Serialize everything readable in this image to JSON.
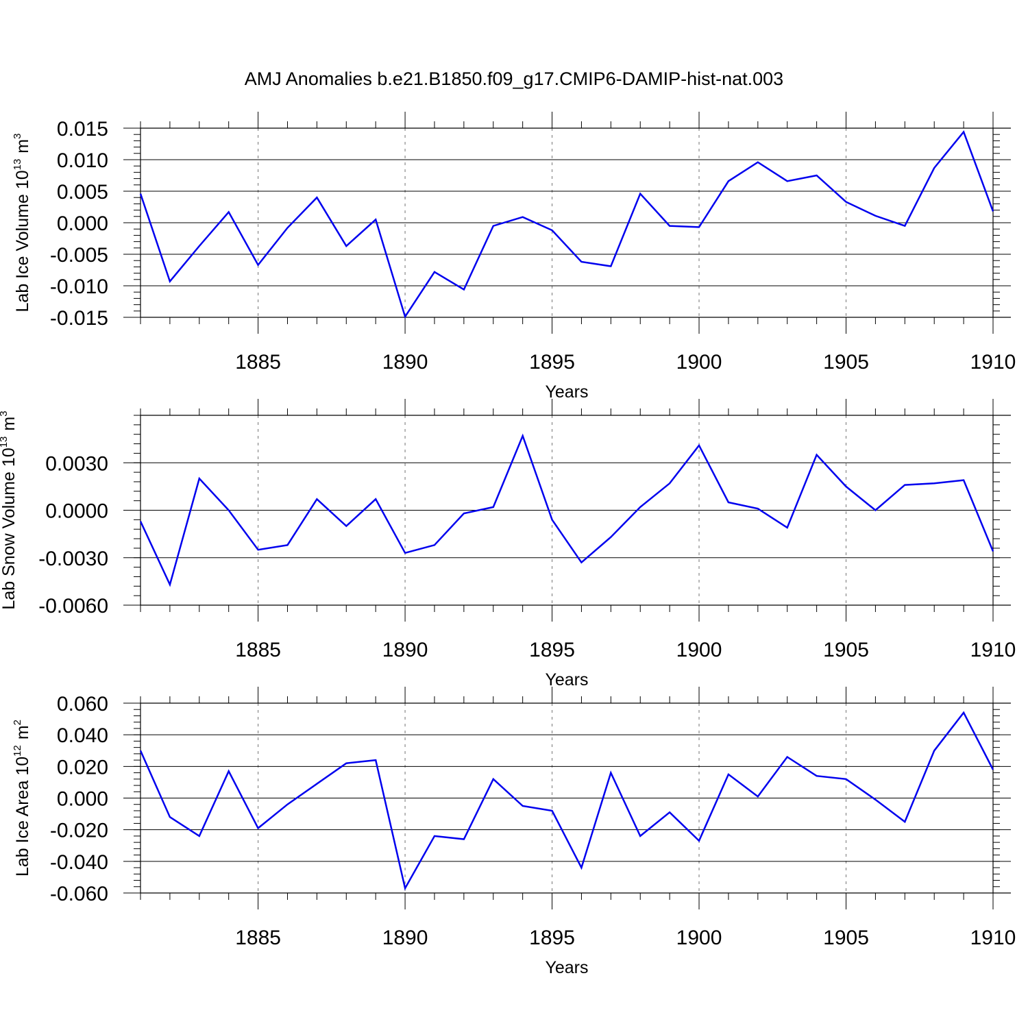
{
  "chart_data": [
    {
      "type": "line",
      "title": "AMJ Anomalies b.e21.B1850.f09_g17.CMIP6-DAMIP-hist-nat.003",
      "xlabel": "Years",
      "ylabel": "Lab Ice Volume 10",
      "ylabel_exp": "13",
      "ylabel_unit": "m",
      "ylabel_unit_exp": "3",
      "xlim": [
        1881,
        1910
      ],
      "ylim": [
        -0.015,
        0.015
      ],
      "xticks": [
        "1885",
        "1890",
        "1895",
        "1900",
        "1905",
        "1910"
      ],
      "yticks": [
        "0.015",
        "0.010",
        "0.005",
        "0.000",
        "-0.005",
        "-0.010",
        "-0.015"
      ],
      "grid": "vertical-dashed",
      "line_color": "#0000ee",
      "x": [
        1881,
        1882,
        1883,
        1884,
        1885,
        1886,
        1887,
        1888,
        1889,
        1890,
        1891,
        1892,
        1893,
        1894,
        1895,
        1896,
        1897,
        1898,
        1899,
        1900,
        1901,
        1902,
        1903,
        1904,
        1905,
        1906,
        1907,
        1908,
        1909,
        1910
      ],
      "values": [
        0.0046,
        -0.0093,
        -0.0037,
        0.0017,
        -0.0067,
        -0.0008,
        0.004,
        -0.0037,
        0.0005,
        -0.0149,
        -0.0078,
        -0.0106,
        -0.0005,
        0.0009,
        -0.0012,
        -0.0062,
        -0.0069,
        0.0046,
        -0.0005,
        -0.0007,
        0.0066,
        0.0096,
        0.0066,
        0.0075,
        0.0033,
        0.0011,
        -0.0005,
        0.0087,
        0.0144,
        0.0018
      ]
    },
    {
      "type": "line",
      "title": "",
      "xlabel": "Years",
      "ylabel": "Lab Snow Volume 10",
      "ylabel_exp": "13",
      "ylabel_unit": "m",
      "ylabel_unit_exp": "3",
      "xlim": [
        1881,
        1910
      ],
      "ylim": [
        -0.006,
        0.006
      ],
      "xticks": [
        "1885",
        "1890",
        "1895",
        "1900",
        "1905",
        "1910"
      ],
      "yticks": [
        "0.0030",
        "0.0000",
        "-0.0030",
        "-0.0060"
      ],
      "grid": "vertical-dashed",
      "line_color": "#0000ee",
      "x": [
        1881,
        1882,
        1883,
        1884,
        1885,
        1886,
        1887,
        1888,
        1889,
        1890,
        1891,
        1892,
        1893,
        1894,
        1895,
        1896,
        1897,
        1898,
        1899,
        1900,
        1901,
        1902,
        1903,
        1904,
        1905,
        1906,
        1907,
        1908,
        1909,
        1910
      ],
      "values": [
        -0.0007,
        -0.0047,
        0.002,
        0.0,
        -0.0025,
        -0.0022,
        0.0007,
        -0.001,
        0.0007,
        -0.0027,
        -0.0022,
        -0.0002,
        0.0002,
        0.0047,
        -0.0006,
        -0.0033,
        -0.0017,
        0.0002,
        0.0017,
        0.0041,
        0.0005,
        0.0001,
        -0.0011,
        0.0035,
        0.0015,
        0.0,
        0.0016,
        0.0017,
        0.0019,
        -0.0026
      ]
    },
    {
      "type": "line",
      "title": "",
      "xlabel": "Years",
      "ylabel": "Lab Ice Area 10",
      "ylabel_exp": "12",
      "ylabel_unit": "m",
      "ylabel_unit_exp": "2",
      "xlim": [
        1881,
        1910
      ],
      "ylim": [
        -0.06,
        0.06
      ],
      "xticks": [
        "1885",
        "1890",
        "1895",
        "1900",
        "1905",
        "1910"
      ],
      "yticks": [
        "0.060",
        "0.040",
        "0.020",
        "0.000",
        "-0.020",
        "-0.040",
        "-0.060"
      ],
      "grid": "vertical-dashed",
      "line_color": "#0000ee",
      "x": [
        1881,
        1882,
        1883,
        1884,
        1885,
        1886,
        1887,
        1888,
        1889,
        1890,
        1891,
        1892,
        1893,
        1894,
        1895,
        1896,
        1897,
        1898,
        1899,
        1900,
        1901,
        1902,
        1903,
        1904,
        1905,
        1906,
        1907,
        1908,
        1909,
        1910
      ],
      "values": [
        0.03,
        -0.012,
        -0.024,
        0.017,
        -0.019,
        -0.004,
        0.009,
        0.022,
        0.024,
        -0.057,
        -0.024,
        -0.026,
        0.012,
        -0.005,
        -0.008,
        -0.044,
        0.016,
        -0.024,
        -0.009,
        -0.027,
        0.015,
        0.001,
        0.026,
        0.014,
        0.012,
        -0.001,
        -0.015,
        0.03,
        0.054,
        0.018
      ]
    }
  ]
}
